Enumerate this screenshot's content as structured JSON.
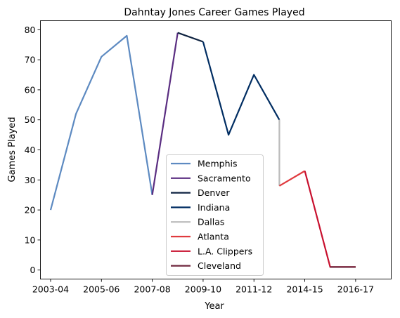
{
  "chart_data": {
    "type": "line",
    "title": "Dahntay Jones Career Games Played",
    "xlabel": "Year",
    "ylabel": "Games Played",
    "x_positions": [
      0,
      1,
      2,
      3,
      4,
      5,
      6,
      7,
      8,
      9,
      10,
      11,
      12,
      13
    ],
    "xlim": [
      -0.4,
      13.4
    ],
    "ylim": [
      -3,
      83
    ],
    "x_ticks": [
      {
        "x": 0,
        "label": "2003-04"
      },
      {
        "x": 2,
        "label": "2005-06"
      },
      {
        "x": 4,
        "label": "2007-08"
      },
      {
        "x": 6,
        "label": "2009-10"
      },
      {
        "x": 8,
        "label": "2011-12"
      },
      {
        "x": 10,
        "label": "2014-15"
      },
      {
        "x": 12,
        "label": "2016-17"
      }
    ],
    "y_ticks": [
      0,
      10,
      20,
      30,
      40,
      50,
      60,
      70,
      80
    ],
    "grid": false,
    "legend_position": "lower-center",
    "series": [
      {
        "name": "Memphis",
        "color": "#5D8AC1",
        "points": [
          [
            0,
            20
          ],
          [
            1,
            52
          ],
          [
            2,
            71
          ],
          [
            3,
            78
          ],
          [
            4,
            25
          ]
        ]
      },
      {
        "name": "Sacramento",
        "color": "#5A2D81",
        "points": [
          [
            4,
            25
          ],
          [
            5,
            79
          ]
        ]
      },
      {
        "name": "Denver",
        "color": "#0E2240",
        "points": [
          [
            5,
            79
          ],
          [
            6,
            76
          ]
        ]
      },
      {
        "name": "Indiana",
        "color": "#002D62",
        "points": [
          [
            6,
            76
          ],
          [
            7,
            45
          ],
          [
            8,
            65
          ],
          [
            9,
            50
          ]
        ]
      },
      {
        "name": "Dallas",
        "color": "#BBBBBB",
        "points": [
          [
            9,
            50
          ],
          [
            9,
            28
          ]
        ]
      },
      {
        "name": "Atlanta",
        "color": "#E03A3E",
        "points": [
          [
            9,
            28
          ],
          [
            10,
            33
          ]
        ]
      },
      {
        "name": "L.A. Clippers",
        "color": "#C8102E",
        "points": [
          [
            10,
            33
          ],
          [
            11,
            1
          ],
          [
            12,
            1
          ]
        ]
      },
      {
        "name": "Cleveland",
        "color": "#6F263D",
        "points": [
          [
            11,
            1
          ],
          [
            12,
            1
          ]
        ]
      }
    ]
  }
}
